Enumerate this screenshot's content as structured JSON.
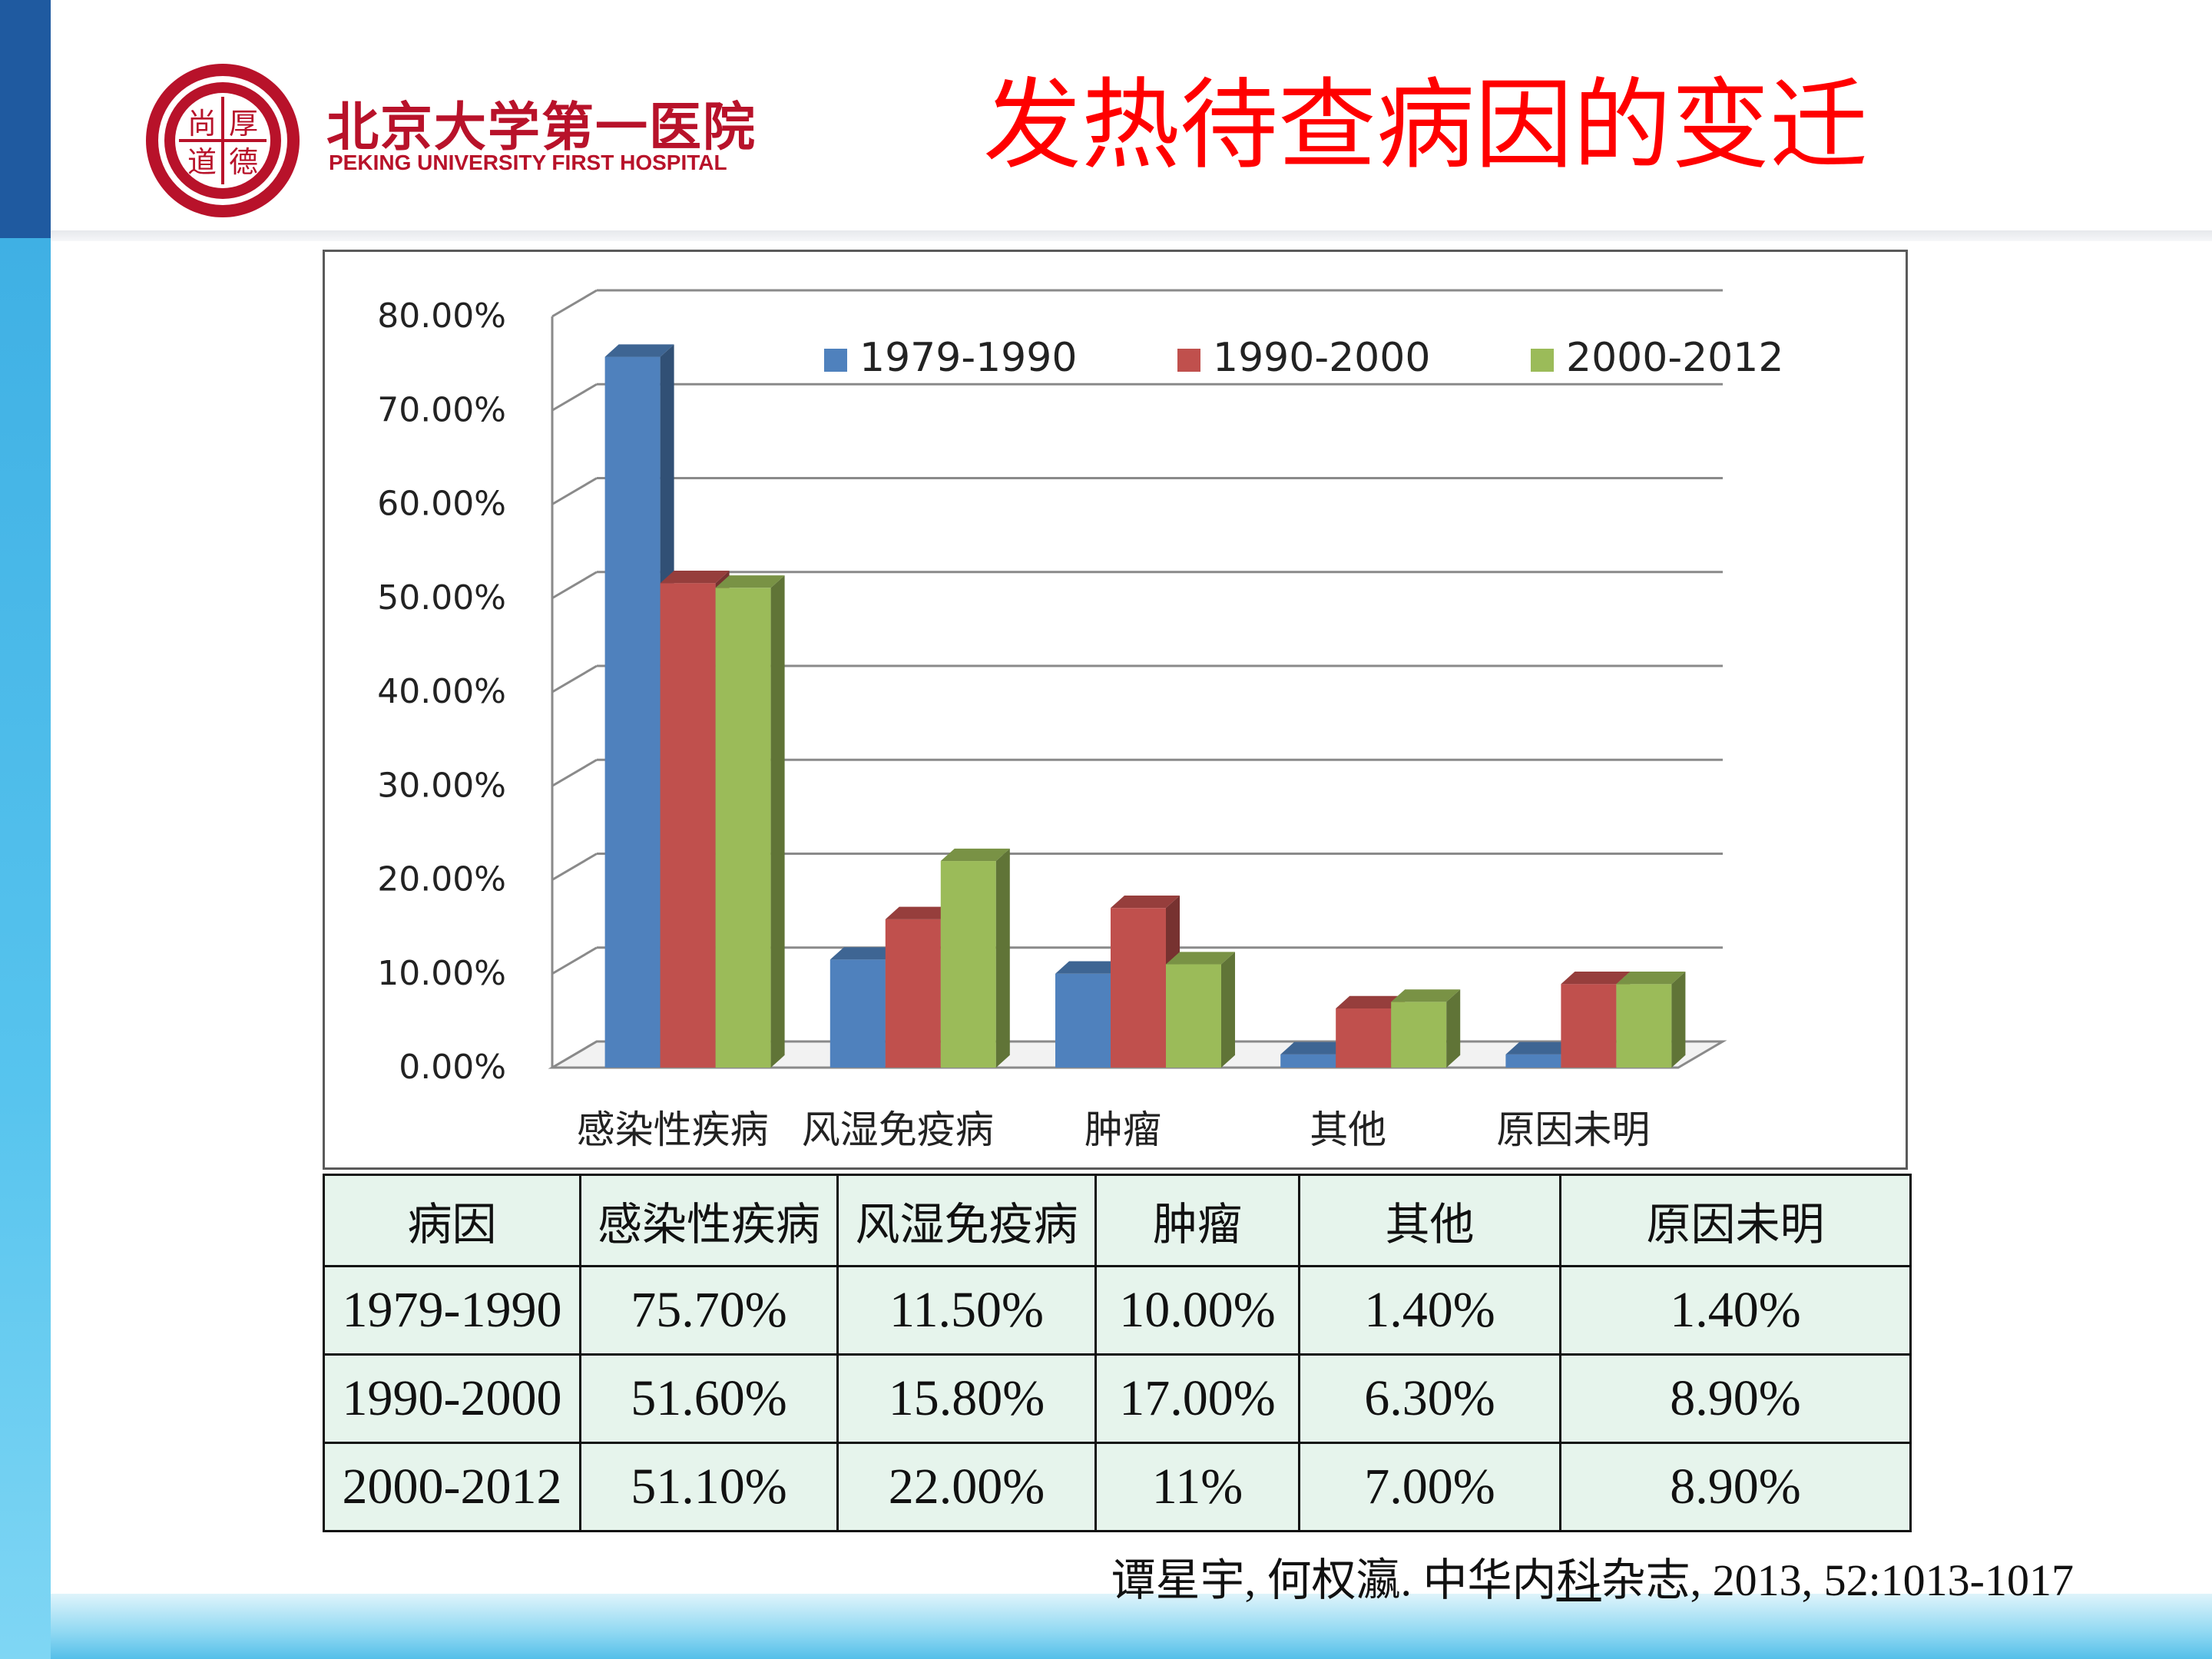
{
  "header": {
    "logo_cn": "北京大学第一医院",
    "logo_en": "PEKING UNIVERSITY FIRST HOSPITAL",
    "seal_text": "尚厚道德",
    "title": "发热待查病因的变迁"
  },
  "colors": {
    "title": "#ff0000",
    "brand": "#b8122a",
    "series": [
      "#4f81bd",
      "#c0504d",
      "#9bbb59"
    ]
  },
  "chart_data": {
    "type": "bar",
    "style": "3d-clustered",
    "categories": [
      "感染性疾病",
      "风湿免疫病",
      "肿瘤",
      "其他",
      "原因未明"
    ],
    "series": [
      {
        "name": "1979-1990",
        "values": [
          75.7,
          11.5,
          10.0,
          1.4,
          1.4
        ]
      },
      {
        "name": "1990-2000",
        "values": [
          51.6,
          15.8,
          17.0,
          6.3,
          8.9
        ]
      },
      {
        "name": "2000-2012",
        "values": [
          51.1,
          22.0,
          11.0,
          7.0,
          8.9
        ]
      }
    ],
    "ylim": [
      0,
      80
    ],
    "yticks": [
      "0.00%",
      "10.00%",
      "20.00%",
      "30.00%",
      "40.00%",
      "50.00%",
      "60.00%",
      "70.00%",
      "80.00%"
    ],
    "grid": true,
    "legend": "top"
  },
  "table": {
    "header": [
      "病因",
      "感染性疾病",
      "风湿免疫病",
      "肿瘤",
      "其他",
      "原因未明"
    ],
    "rows": [
      [
        "1979-1990",
        "75.70%",
        "11.50%",
        "10.00%",
        "1.40%",
        "1.40%"
      ],
      [
        "1990-2000",
        "51.60%",
        "15.80%",
        "17.00%",
        "6.30%",
        "8.90%"
      ],
      [
        "2000-2012",
        "51.10%",
        "22.00%",
        "11%",
        "7.00%",
        "8.90%"
      ]
    ]
  },
  "citation": {
    "pre": "谭星宇, 何权瀛. 中华内",
    "underlined": "科",
    "post": "杂志, 2013, 52:1013-1017"
  }
}
